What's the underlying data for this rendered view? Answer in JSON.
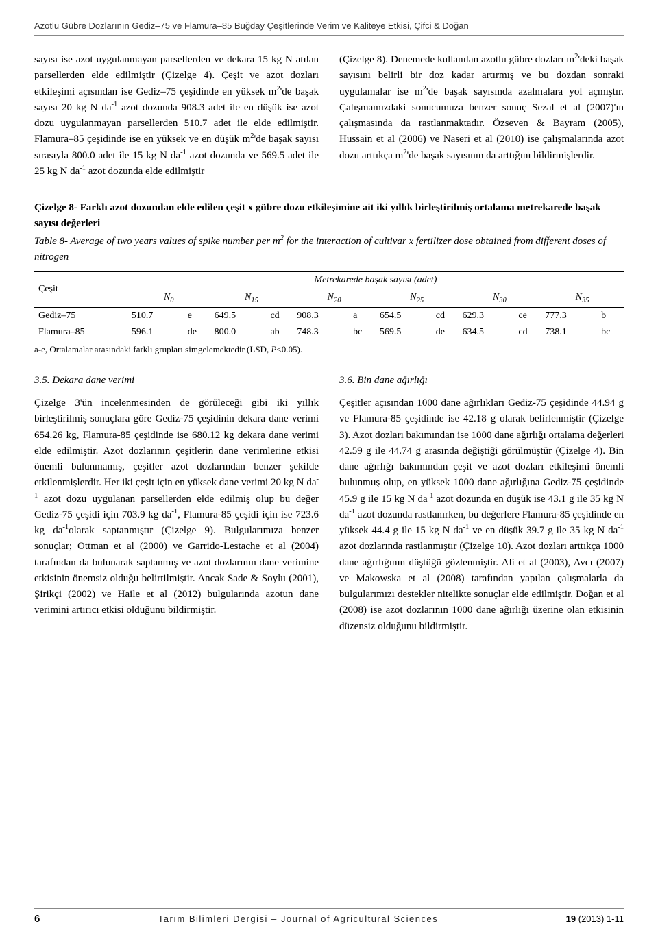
{
  "header": {
    "running_title": "Azotlu Gübre Dozlarının Gediz–75 ve Flamura–85 Buğday Çeşitlerinde Verim ve Kaliteye Etkisi, Çifci & Doğan"
  },
  "body": {
    "col1_html": "sayısı ise azot uygulanmayan parsellerden ve dekara 15 kg N atılan parsellerden elde edilmiştir (Çizelge 4). Çeşit ve azot dozları etkileşimi açısından ise Gediz–75 çeşidinde en yüksek m<sup>2</sup>'de başak sayısı 20 kg N da<sup>-1</sup> azot dozunda 908.3 adet ile en düşük ise azot dozu uygulanmayan parsellerden 510.7 adet ile elde edilmiştir. Flamura–85 çeşidinde ise en yüksek ve en düşük m<sup>2</sup>'de başak sayısı sırasıyla 800.0 adet ile 15 kg N da<sup>-1</sup> azot dozunda ve 569.5 adet ile 25 kg N da<sup>-1</sup> azot dozunda elde edilmiştir",
    "col2_html": "(Çizelge 8). Denemede kullanılan azotlu gübre dozları m<sup>2</sup>'deki başak sayısını belirli bir doz kadar artırmış ve bu dozdan sonraki uygulamalar ise m<sup>2</sup>'de başak sayısında azalmalara yol açmıştır. Çalışmamızdaki sonucumuza benzer sonuç Sezal et al (2007)'ın çalışmasında da rastlanmaktadır. Özseven & Bayram (2005), Hussain et al (2006) ve Naseri et al (2010) ise çalışmalarında azot dozu arttıkça m<sup>2</sup>'de başak sayısının da arttığını bildirmişlerdir."
  },
  "table8": {
    "caption_tr": "Çizelge 8- Farklı azot dozundan elde edilen çeşit x gübre dozu etkileşimine ait iki yıllık birleştirilmiş ortalama metrekarede başak sayısı değerleri",
    "caption_en_html": "Table 8- Average of two years values of spike number per m<sup>2</sup> for the interaction of cultivar x fertilizer dose obtained from different doses of nitrogen",
    "group_header": "Metrekarede başak sayısı (adet)",
    "row_header": "Çeşit",
    "n_labels": [
      "0",
      "15",
      "20",
      "25",
      "30",
      "35"
    ],
    "rows": [
      {
        "name": "Gediz–75",
        "cells": [
          [
            "510.7",
            "e"
          ],
          [
            "649.5",
            "cd"
          ],
          [
            "908.3",
            "a"
          ],
          [
            "654.5",
            "cd"
          ],
          [
            "629.3",
            "ce"
          ],
          [
            "777.3",
            "b"
          ]
        ]
      },
      {
        "name": "Flamura–85",
        "cells": [
          [
            "596.1",
            "de"
          ],
          [
            "800.0",
            "ab"
          ],
          [
            "748.3",
            "bc"
          ],
          [
            "569.5",
            "de"
          ],
          [
            "634.5",
            "cd"
          ],
          [
            "738.1",
            "bc"
          ]
        ]
      }
    ],
    "note_html": "a-e, Ortalamalar arasındaki farklı grupları simgelemektedir (LSD, <i>P</i>&lt;0.05)."
  },
  "sec35": {
    "heading": "3.5. Dekara dane verimi",
    "text_html": "Çizelge 3'ün incelenmesinden de görüleceği gibi iki yıllık birleştirilmiş sonuçlara göre Gediz-75 çeşidinin dekara dane verimi 654.26 kg, Flamura-85 çeşidinde ise 680.12 kg dekara dane verimi elde edilmiştir. Azot dozlarının çeşitlerin dane verimlerine etkisi önemli bulunmamış, çeşitler azot dozlarından benzer şekilde etkilenmişlerdir. Her iki çeşit için en yüksek dane verimi 20 kg N da<sup>-1</sup> azot dozu uygulanan parsellerden elde edilmiş olup bu değer Gediz-75 çeşidi için 703.9 kg da<sup>-1</sup>, Flamura-85 çeşidi için ise 723.6 kg da<sup>-1</sup>olarak saptanmıştır (Çizelge 9). Bulgularımıza benzer sonuçlar; Ottman et al (2000) ve Garrido-Lestache et al (2004) tarafından da bulunarak saptanmış ve azot dozlarının dane verimine etkisinin önemsiz olduğu belirtilmiştir. Ancak Sade & Soylu (2001), Şirikçi (2002) ve Haile et al (2012) bulgularında azotun dane verimini artırıcı etkisi olduğunu bildirmiştir."
  },
  "sec36": {
    "heading": "3.6. Bin dane ağırlığı",
    "text_html": "Çeşitler açısından 1000 dane ağırlıkları Gediz-75 çeşidinde 44.94 g ve Flamura-85 çeşidinde ise 42.18 g olarak belirlenmiştir (Çizelge 3). Azot dozları bakımından ise 1000 dane ağırlığı ortalama değerleri 42.59 g ile 44.74 g arasında değiştiği görülmüştür (Çizelge 4). Bin dane ağırlığı bakımından çeşit ve azot dozları etkileşimi önemli bulunmuş olup, en yüksek 1000 dane ağırlığına Gediz-75 çeşidinde 45.9 g ile 15 kg N da<sup>-1</sup> azot dozunda en düşük ise 43.1 g ile 35 kg N da<sup>-1</sup> azot dozunda rastlanırken, bu değerlere Flamura-85 çeşidinde en yüksek 44.4 g ile 15 kg N da<sup>-1</sup> ve en düşük 39.7 g ile 35 kg N da<sup>-1</sup> azot dozlarında rastlanmıştır (Çizelge 10). Azot dozları arttıkça 1000 dane ağırlığının düştüğü gözlenmiştir. Ali et al (2003), Avcı (2007) ve Makowska et al (2008) tarafından yapılan çalışmalarla da bulgularımızı destekler nitelikte sonuçlar elde edilmiştir. Doğan et al (2008) ise azot dozlarının 1000 dane ağırlığı üzerine olan etkisinin düzensiz olduğunu bildirmiştir."
  },
  "footer": {
    "page_number": "6",
    "journal": "Tarım Bilimleri Dergisi – Journal of Agricultural Sciences",
    "volume": "19",
    "issue_year": "(2013) 1-11"
  }
}
